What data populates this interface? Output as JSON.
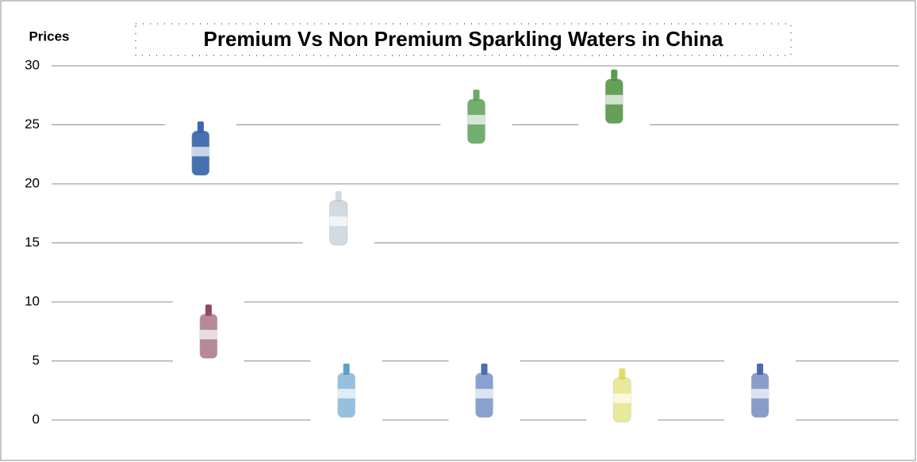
{
  "chart_data": {
    "type": "bottles",
    "title": "Premium Vs Non Premium Sparkling Waters in China",
    "y_label": "Prices",
    "categories": [
      null,
      null,
      null,
      null,
      null
    ],
    "series": [
      {
        "colors": [
          "#1a4d9e",
          "#c9d3dc",
          "#4f9a4a",
          "#3e8a2e",
          null
        ],
        "values": [
          23,
          17.1,
          25.7,
          27.4,
          null
        ]
      },
      {
        "colors": [
          "#7a2a4a",
          "#3f8fc4",
          "#2a55a8",
          "#d8d84a",
          "#2c4ea0"
        ],
        "values": [
          7.5,
          2.5,
          2.5,
          2.1,
          2.5
        ]
      }
    ],
    "ylim": [
      0,
      30
    ],
    "yticks": [
      0,
      5,
      10,
      15,
      20,
      25,
      30
    ],
    "grid": true
  }
}
